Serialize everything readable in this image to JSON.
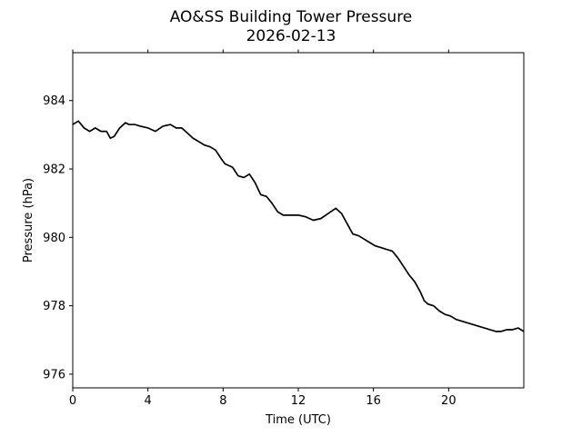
{
  "chart_data": {
    "type": "line",
    "title": "AO&SS Building Tower Pressure",
    "subtitle": "2026-02-13",
    "xlabel": "Time (UTC)",
    "ylabel": "Pressure (hPa)",
    "xlim": [
      0,
      24
    ],
    "ylim": [
      975.6,
      985.4
    ],
    "x_ticks": [
      0,
      4,
      8,
      12,
      16,
      20
    ],
    "x_tick_labels": [
      "0",
      "4",
      "8",
      "12",
      "16",
      "20"
    ],
    "y_ticks": [
      976,
      978,
      980,
      982,
      984
    ],
    "y_tick_labels": [
      "976",
      "978",
      "980",
      "982",
      "984"
    ],
    "grid": false,
    "series": [
      {
        "name": "Pressure",
        "color": "#000000",
        "x": [
          0,
          0.3,
          0.6,
          0.9,
          1.2,
          1.5,
          1.8,
          2.0,
          2.2,
          2.5,
          2.8,
          3.0,
          3.3,
          3.6,
          4.0,
          4.4,
          4.8,
          5.2,
          5.5,
          5.8,
          6.1,
          6.4,
          6.7,
          7.0,
          7.3,
          7.6,
          7.9,
          8.1,
          8.3,
          8.5,
          8.8,
          9.1,
          9.4,
          9.7,
          10.0,
          10.3,
          10.6,
          10.9,
          11.2,
          11.6,
          12.0,
          12.4,
          12.8,
          13.2,
          13.6,
          14.0,
          14.3,
          14.6,
          14.9,
          15.2,
          15.5,
          15.8,
          16.1,
          16.4,
          16.7,
          17.0,
          17.3,
          17.6,
          17.9,
          18.2,
          18.5,
          18.7,
          18.9,
          19.2,
          19.5,
          19.8,
          20.1,
          20.4,
          20.7,
          21.0,
          21.3,
          21.6,
          21.9,
          22.2,
          22.5,
          22.8,
          23.1,
          23.4,
          23.7,
          24.0
        ],
        "values": [
          983.3,
          983.4,
          983.2,
          983.1,
          983.2,
          983.1,
          983.1,
          982.9,
          982.95,
          983.2,
          983.35,
          983.3,
          983.3,
          983.25,
          983.2,
          983.1,
          983.25,
          983.3,
          983.2,
          983.2,
          983.05,
          982.9,
          982.8,
          982.7,
          982.65,
          982.55,
          982.3,
          982.15,
          982.1,
          982.05,
          981.8,
          981.75,
          981.85,
          981.6,
          981.25,
          981.2,
          981.0,
          980.75,
          980.65,
          980.65,
          980.65,
          980.6,
          980.5,
          980.55,
          980.7,
          980.85,
          980.7,
          980.4,
          980.1,
          980.05,
          979.95,
          979.85,
          979.75,
          979.7,
          979.65,
          979.6,
          979.4,
          979.15,
          978.9,
          978.7,
          978.4,
          978.15,
          978.05,
          978.0,
          977.85,
          977.75,
          977.7,
          977.6,
          977.55,
          977.5,
          977.45,
          977.4,
          977.35,
          977.3,
          977.25,
          977.25,
          977.3,
          977.3,
          977.35,
          977.25
        ]
      }
    ]
  }
}
